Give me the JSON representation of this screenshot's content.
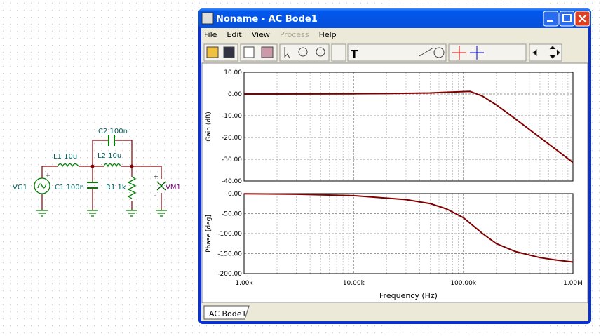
{
  "schematic": {
    "labels": [
      "VG1",
      "L1 10u",
      "C1 100n",
      "C2 100n",
      "L2 10u",
      "R1 1k",
      "VM1"
    ],
    "signs": [
      "+",
      "+",
      "-"
    ]
  },
  "window": {
    "title": "Noname - AC Bode1",
    "menu": [
      "File",
      "Edit",
      "View",
      "Process",
      "Help"
    ],
    "tab": "AC Bode1"
  },
  "chart_data": [
    {
      "type": "line",
      "ylabel": "Gain (dB)",
      "xlog": true,
      "grid": true,
      "x": [
        1000,
        2000,
        5000,
        10000,
        20000,
        50000,
        70000,
        100000,
        115000,
        150000,
        200000,
        300000,
        500000,
        700000,
        1000000
      ],
      "xlim": [
        1000,
        1000000
      ],
      "xticks": [
        1000,
        10000,
        100000,
        1000000
      ],
      "xminorticks": [
        2000,
        3000,
        4000,
        5000,
        6000,
        7000,
        8000,
        9000,
        20000,
        30000,
        40000,
        50000,
        60000,
        70000,
        80000,
        90000,
        200000,
        300000,
        400000,
        500000,
        600000,
        700000,
        800000,
        900000
      ],
      "ylim": [
        -40,
        10
      ],
      "yticks": [
        {
          "value": -40,
          "label": "-40.00"
        },
        {
          "value": -30,
          "label": "-30.00"
        },
        {
          "value": -20,
          "label": "-20.00"
        },
        {
          "value": -10,
          "label": "-10.00"
        },
        {
          "value": 0,
          "label": "0.00"
        },
        {
          "value": 10,
          "label": "10.00"
        }
      ],
      "series": [
        {
          "color": "#800000",
          "values": [
            0,
            0,
            0.05,
            0.1,
            0.2,
            0.5,
            0.8,
            1.1,
            1.2,
            -1,
            -5,
            -11.5,
            -20,
            -25.5,
            -31.5
          ]
        }
      ]
    },
    {
      "type": "line",
      "ylabel": "Phase [deg]",
      "xlabel": "Frequency (Hz)",
      "xlog": true,
      "grid": true,
      "x": [
        1000,
        3000,
        10000,
        30000,
        50000,
        70000,
        100000,
        150000,
        200000,
        300000,
        500000,
        700000,
        1000000
      ],
      "xlim": [
        1000,
        1000000
      ],
      "xticks": [
        {
          "value": 1000,
          "label": "1.00k"
        },
        {
          "value": 10000,
          "label": "10.00k"
        },
        {
          "value": 100000,
          "label": "100.00k"
        },
        {
          "value": 1000000,
          "label": "1.00M"
        }
      ],
      "xminorticks": [
        2000,
        3000,
        4000,
        5000,
        6000,
        7000,
        8000,
        9000,
        20000,
        30000,
        40000,
        50000,
        60000,
        70000,
        80000,
        90000,
        200000,
        300000,
        400000,
        500000,
        600000,
        700000,
        800000,
        900000
      ],
      "ylim": [
        -200,
        0
      ],
      "yticks": [
        {
          "value": -200,
          "label": "-200.00"
        },
        {
          "value": -150,
          "label": "-150.00"
        },
        {
          "value": -100,
          "label": "-100.00"
        },
        {
          "value": -50,
          "label": "-50.00"
        },
        {
          "value": 0,
          "label": "0.00"
        }
      ],
      "series": [
        {
          "color": "#800000",
          "values": [
            -0.5,
            -1.5,
            -5,
            -15,
            -25,
            -38,
            -60,
            -100,
            -125,
            -145,
            -160,
            -166,
            -171
          ]
        }
      ]
    }
  ]
}
